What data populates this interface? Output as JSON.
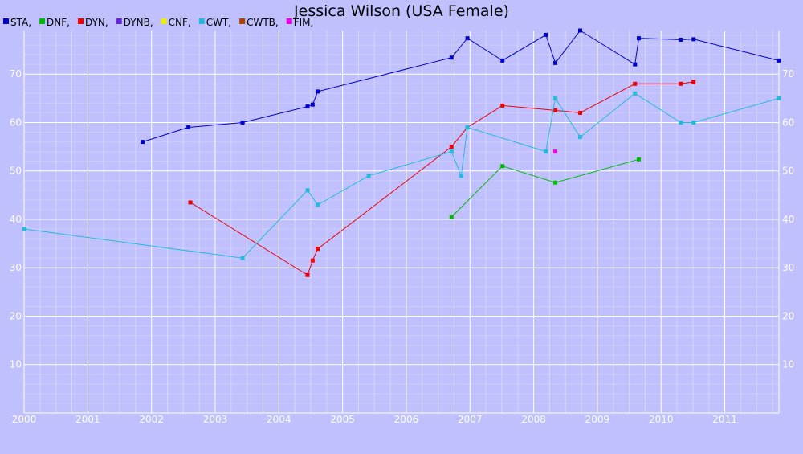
{
  "chart_data": {
    "type": "line",
    "title": "Jessica Wilson (USA Female)",
    "xlabel": "",
    "ylabel": "",
    "xlim": [
      2000.0,
      2011.85
    ],
    "ylim": [
      0,
      79
    ],
    "x_ticks": [
      "2000",
      "2001",
      "2002",
      "2003",
      "2004",
      "2005",
      "2006",
      "2007",
      "2008",
      "2009",
      "2010",
      "2011"
    ],
    "y_ticks": [
      10,
      20,
      30,
      40,
      50,
      60,
      70
    ],
    "grid": true,
    "legend_position": "top-left",
    "legend": [
      {
        "label": "STA,",
        "color": "#0000cc"
      },
      {
        "label": "DNF,",
        "color": "#00bb00"
      },
      {
        "label": "DYN,",
        "color": "#ee0000"
      },
      {
        "label": "DYNB,",
        "color": "#6622dd"
      },
      {
        "label": "CNF,",
        "color": "#eeee00"
      },
      {
        "label": "CWT,",
        "color": "#22bbdd"
      },
      {
        "label": "CWTB,",
        "color": "#aa4400"
      },
      {
        "label": "FIM,",
        "color": "#ee00ee"
      }
    ],
    "series": [
      {
        "name": "STA",
        "color": "#0000cc",
        "points": [
          [
            2001.86,
            56
          ],
          [
            2002.58,
            59
          ],
          [
            2003.43,
            60
          ],
          [
            2004.45,
            63.3
          ],
          [
            2004.53,
            63.7
          ],
          [
            2004.61,
            66.4
          ],
          [
            2006.71,
            73.4
          ],
          [
            2006.96,
            77.4
          ],
          [
            2007.51,
            72.8
          ],
          [
            2008.19,
            78.1
          ],
          [
            2008.34,
            72.3
          ],
          [
            2008.73,
            79
          ],
          [
            2009.59,
            72
          ],
          [
            2009.65,
            77.4
          ],
          [
            2010.31,
            77.1
          ],
          [
            2010.51,
            77.2
          ],
          [
            2011.85,
            72.8
          ]
        ]
      },
      {
        "name": "DNF",
        "color": "#00bb00",
        "points": [
          [
            2006.71,
            40.5
          ],
          [
            2007.51,
            51
          ],
          [
            2008.34,
            47.6
          ],
          [
            2009.65,
            52.4
          ]
        ]
      },
      {
        "name": "DYN",
        "color": "#ee0000",
        "points": [
          [
            2002.61,
            43.5
          ],
          [
            2004.45,
            28.5
          ],
          [
            2004.53,
            31.5
          ],
          [
            2004.61,
            33.9
          ],
          [
            2006.71,
            55
          ],
          [
            2006.96,
            59
          ],
          [
            2007.51,
            63.5
          ],
          [
            2008.34,
            62.5
          ],
          [
            2008.73,
            62
          ],
          [
            2009.59,
            68
          ],
          [
            2010.31,
            68
          ],
          [
            2010.51,
            68.4
          ]
        ]
      },
      {
        "name": "CWT",
        "color": "#22bbdd",
        "points": [
          [
            2000.0,
            38
          ],
          [
            2003.43,
            32
          ],
          [
            2004.45,
            46
          ],
          [
            2004.61,
            43
          ],
          [
            2005.41,
            49
          ],
          [
            2006.71,
            54
          ],
          [
            2006.86,
            49
          ],
          [
            2006.96,
            59
          ],
          [
            2008.19,
            54
          ],
          [
            2008.34,
            65
          ],
          [
            2008.73,
            57
          ],
          [
            2009.59,
            66
          ],
          [
            2010.31,
            60
          ],
          [
            2010.51,
            60
          ],
          [
            2011.85,
            65
          ]
        ]
      },
      {
        "name": "FIM",
        "color": "#ee00ee",
        "points": [
          [
            2008.34,
            54
          ]
        ]
      }
    ]
  }
}
